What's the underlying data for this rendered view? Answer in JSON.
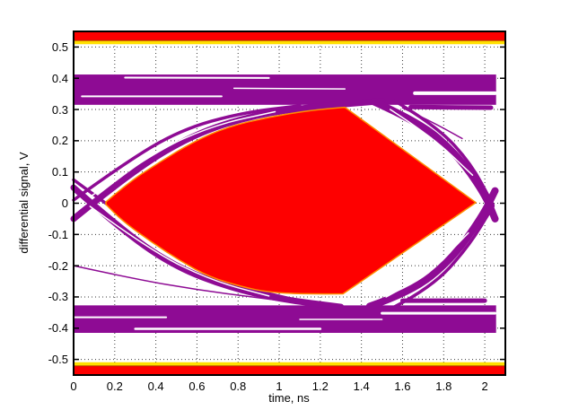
{
  "chart_data": {
    "type": "line",
    "subtype": "eye-diagram-with-mask",
    "title": "",
    "xlabel": "time, ns",
    "ylabel": "differential signal, V",
    "xlim": [
      0,
      2.1
    ],
    "ylim": [
      -0.55,
      0.55
    ],
    "x_ticks": [
      0,
      0.2,
      0.4,
      0.6,
      0.8,
      1,
      1.2,
      1.4,
      1.6,
      1.8,
      2
    ],
    "x_tick_labels": [
      "0",
      "0.2",
      "0.4",
      "0.6",
      "0.8",
      "1",
      "1.2",
      "1.4",
      "1.6",
      "1.8",
      "2"
    ],
    "y_ticks": [
      0.5,
      0.4,
      0.3,
      0.2,
      0.1,
      0,
      -0.1,
      -0.2,
      -0.3,
      -0.4,
      -0.5
    ],
    "y_tick_labels": [
      "0.5",
      "0.4",
      "0.3",
      "0.2",
      "0.1",
      "0",
      "-0.1",
      "-0.2",
      "-0.3",
      "-0.4",
      "-0.5"
    ],
    "grid": "dotted",
    "legend": "none",
    "colors": {
      "signal_trace": "#8E0B94",
      "mask_fill": "#FE0000",
      "mask_border": "#FF8C00",
      "bar_yellow": "#FFDF00",
      "bar_divider": "#B03000",
      "grid": "#3a3a3a",
      "axis": "#000000",
      "text": "#000000",
      "background": "#FFFFFF"
    },
    "mask": {
      "top_bar": {
        "red_y": [
          0.521,
          0.55
        ],
        "yellow_y": [
          0.509,
          0.52
        ]
      },
      "bottom_bar": {
        "red_y": [
          -0.55,
          -0.521
        ],
        "yellow_y": [
          -0.52,
          -0.509
        ]
      },
      "center": {
        "top": [
          [
            0.157,
            0.004
          ],
          [
            0.27,
            0.068
          ],
          [
            0.42,
            0.132
          ],
          [
            0.58,
            0.196
          ],
          [
            0.75,
            0.245
          ],
          [
            0.95,
            0.276
          ],
          [
            1.15,
            0.297
          ],
          [
            1.32,
            0.307
          ]
        ],
        "right_vertex": [
          1.957,
          0.002
        ],
        "bottom": [
          [
            1.31,
            -0.29
          ],
          [
            1.12,
            -0.291
          ],
          [
            0.95,
            -0.285
          ],
          [
            0.82,
            -0.268
          ],
          [
            0.66,
            -0.236
          ],
          [
            0.52,
            -0.185
          ],
          [
            0.38,
            -0.125
          ],
          [
            0.24,
            -0.058
          ],
          [
            0.157,
            -0.004
          ]
        ]
      }
    },
    "eye": {
      "rails": [
        {
          "x": [
            0,
            2.055
          ],
          "y": [
            0.315,
            0.412
          ]
        },
        {
          "x": [
            0,
            2.055
          ],
          "y": [
            -0.415,
            -0.327
          ]
        }
      ],
      "rail_highlights": [
        {
          "w": 2,
          "points": [
            [
              0.04,
              0.342
            ],
            [
              0.72,
              0.342
            ]
          ]
        },
        {
          "w": 2,
          "points": [
            [
              0.25,
              0.402
            ],
            [
              0.95,
              0.401
            ]
          ]
        },
        {
          "w": 1.5,
          "points": [
            [
              0.78,
              0.368
            ],
            [
              1.32,
              0.366
            ]
          ]
        },
        {
          "w": 4,
          "points": [
            [
              1.66,
              0.352
            ],
            [
              2.05,
              0.352
            ]
          ]
        },
        {
          "w": 2,
          "points": [
            [
              0.0,
              -0.365
            ],
            [
              0.45,
              -0.365
            ]
          ]
        },
        {
          "w": 2.5,
          "points": [
            [
              0.3,
              -0.402
            ],
            [
              1.2,
              -0.402
            ]
          ]
        },
        {
          "w": 3,
          "points": [
            [
              1.5,
              -0.352
            ],
            [
              2.05,
              -0.352
            ]
          ]
        },
        {
          "w": 1.5,
          "points": [
            [
              1.1,
              -0.372
            ],
            [
              1.5,
              -0.372
            ]
          ]
        }
      ],
      "trace_bundles": [
        {
          "w": 7,
          "points": [
            [
              0,
              -0.05
            ],
            [
              0.28,
              0.1
            ],
            [
              0.58,
              0.22
            ],
            [
              0.88,
              0.283
            ],
            [
              1.18,
              0.31
            ],
            [
              1.5,
              0.327
            ]
          ]
        },
        {
          "w": 3.5,
          "points": [
            [
              0,
              0.01
            ],
            [
              0.24,
              0.125
            ],
            [
              0.52,
              0.235
            ],
            [
              0.82,
              0.29
            ],
            [
              1.1,
              0.312
            ]
          ]
        },
        {
          "w": 7,
          "points": [
            [
              0,
              0.05
            ],
            [
              0.25,
              -0.095
            ],
            [
              0.5,
              -0.205
            ],
            [
              0.75,
              -0.268
            ],
            [
              1.0,
              -0.307
            ],
            [
              1.3,
              -0.332
            ]
          ]
        },
        {
          "w": 3.5,
          "points": [
            [
              0,
              0.075
            ],
            [
              0.28,
              -0.06
            ],
            [
              0.56,
              -0.19
            ],
            [
              0.85,
              -0.275
            ],
            [
              1.15,
              -0.32
            ]
          ]
        },
        {
          "w": 1.5,
          "points": [
            [
              0,
              -0.2
            ],
            [
              0.3,
              -0.243
            ],
            [
              0.6,
              -0.277
            ],
            [
              0.9,
              -0.303
            ],
            [
              1.05,
              -0.315
            ]
          ]
        },
        {
          "w": 8,
          "points": [
            [
              1.46,
              0.325
            ],
            [
              1.68,
              0.26
            ],
            [
              1.86,
              0.16
            ],
            [
              2.0,
              0.03
            ],
            [
              2.05,
              -0.05
            ]
          ]
        },
        {
          "w": 3.5,
          "points": [
            [
              1.56,
              0.328
            ],
            [
              1.76,
              0.25
            ],
            [
              1.93,
              0.13
            ],
            [
              2.04,
              -0.005
            ]
          ]
        },
        {
          "w": 8,
          "points": [
            [
              1.44,
              -0.33
            ],
            [
              1.64,
              -0.285
            ],
            [
              1.84,
              -0.18
            ],
            [
              1.99,
              -0.04
            ],
            [
              2.05,
              0.04
            ]
          ]
        },
        {
          "w": 3.5,
          "points": [
            [
              1.56,
              -0.332
            ],
            [
              1.74,
              -0.27
            ],
            [
              1.92,
              -0.14
            ],
            [
              2.04,
              -0.01
            ]
          ]
        },
        {
          "w": 1.5,
          "points": [
            [
              1.6,
              0.305
            ],
            [
              1.74,
              0.262
            ],
            [
              1.89,
              0.207
            ]
          ]
        },
        {
          "w": 5,
          "points": [
            [
              1.64,
              0.308
            ],
            [
              2.03,
              0.306
            ]
          ]
        },
        {
          "w": 5,
          "points": [
            [
              1.6,
              -0.312
            ],
            [
              2.0,
              -0.312
            ]
          ]
        }
      ],
      "bundle_highlights": [
        {
          "w": 1.5,
          "points": [
            [
              0.08,
              0.02
            ],
            [
              0.38,
              0.16
            ],
            [
              0.68,
              0.25
            ],
            [
              0.98,
              0.293
            ]
          ]
        },
        {
          "w": 1.5,
          "points": [
            [
              0.08,
              -0.01
            ],
            [
              0.38,
              -0.155
            ],
            [
              0.68,
              -0.25
            ],
            [
              0.95,
              -0.297
            ]
          ]
        },
        {
          "w": 1.5,
          "points": [
            [
              1.54,
              0.3
            ],
            [
              1.74,
              0.215
            ],
            [
              1.94,
              0.09
            ]
          ]
        },
        {
          "w": 1.5,
          "points": [
            [
              1.52,
              -0.3
            ],
            [
              1.72,
              -0.23
            ],
            [
              1.92,
              -0.095
            ]
          ]
        }
      ]
    }
  }
}
